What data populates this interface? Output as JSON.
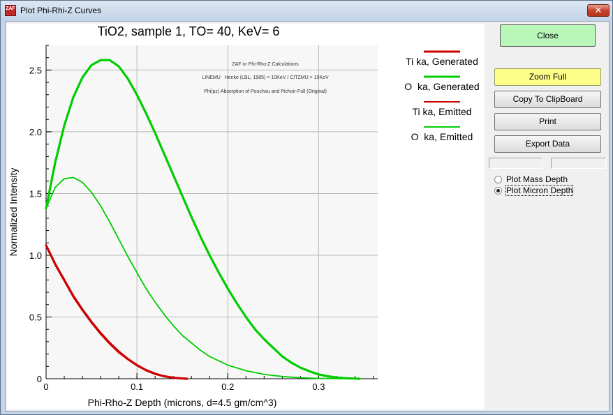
{
  "window": {
    "title": "Plot Phi-Rhi-Z Curves",
    "app_icon_text": "ZAF",
    "close_glyph": "✕"
  },
  "chart_data": {
    "type": "line",
    "title": "TiO2, sample 1, TO= 40, KeV= 6",
    "xlabel": "Phi-Rho-Z Depth (microns, d=4.5 gm/cm^3)",
    "ylabel": "Normalized Intensity",
    "xlim": [
      0,
      0.365
    ],
    "ylim": [
      0,
      2.7
    ],
    "x_ticks": [
      "0",
      "0.1",
      "0.2",
      "0.3"
    ],
    "x_tick_values": [
      0,
      0.1,
      0.2,
      0.3
    ],
    "y_ticks": [
      "0",
      "0.5",
      "1.0",
      "1.5",
      "2.0",
      "2.5"
    ],
    "y_tick_values": [
      0,
      0.5,
      1.0,
      1.5,
      2.0,
      2.5
    ],
    "grid": true,
    "annotations": [
      "ZAF or Phi-Rho-Z Calculations",
      "LINEMU   Henke (LBL, 1985) < 10KeV / CITZMU > 10KeV",
      "Phi(pz) Absorption of Pouchou and Pichoir-Full (Original)"
    ],
    "legend_placement": "right",
    "series": [
      {
        "name": "Ti ka, Generated",
        "color": "#cc0000",
        "weight": "thick",
        "x": [
          0,
          0.01,
          0.02,
          0.03,
          0.04,
          0.05,
          0.06,
          0.07,
          0.08,
          0.09,
          0.1,
          0.11,
          0.12,
          0.13,
          0.14,
          0.15,
          0.155
        ],
        "y": [
          1.08,
          0.93,
          0.8,
          0.67,
          0.56,
          0.46,
          0.37,
          0.29,
          0.22,
          0.16,
          0.11,
          0.07,
          0.04,
          0.02,
          0.008,
          0.002,
          0
        ]
      },
      {
        "name": "O  ka, Generated",
        "color": "#00cc00",
        "weight": "thick",
        "x": [
          0,
          0.01,
          0.02,
          0.03,
          0.04,
          0.05,
          0.06,
          0.07,
          0.08,
          0.09,
          0.1,
          0.11,
          0.12,
          0.13,
          0.14,
          0.15,
          0.16,
          0.17,
          0.18,
          0.19,
          0.2,
          0.21,
          0.22,
          0.23,
          0.24,
          0.25,
          0.26,
          0.27,
          0.28,
          0.29,
          0.3,
          0.31,
          0.32,
          0.33,
          0.34,
          0.345
        ],
        "y": [
          1.38,
          1.75,
          2.05,
          2.28,
          2.44,
          2.54,
          2.58,
          2.58,
          2.53,
          2.43,
          2.3,
          2.15,
          1.99,
          1.82,
          1.65,
          1.48,
          1.31,
          1.15,
          1.0,
          0.86,
          0.73,
          0.61,
          0.5,
          0.4,
          0.32,
          0.25,
          0.18,
          0.13,
          0.09,
          0.06,
          0.035,
          0.02,
          0.01,
          0.004,
          0.001,
          0
        ]
      },
      {
        "name": "Ti ka, Emitted",
        "color": "#cc0000",
        "weight": "thin",
        "x": [
          0,
          0.01,
          0.02,
          0.03,
          0.04,
          0.05,
          0.06,
          0.07,
          0.08,
          0.09,
          0.1,
          0.11,
          0.12,
          0.13,
          0.14,
          0.15,
          0.155
        ],
        "y": [
          1.08,
          0.92,
          0.79,
          0.66,
          0.55,
          0.45,
          0.36,
          0.28,
          0.21,
          0.155,
          0.105,
          0.065,
          0.035,
          0.018,
          0.007,
          0.002,
          0
        ]
      },
      {
        "name": "O  ka, Emitted",
        "color": "#00cc00",
        "weight": "thin",
        "x": [
          0,
          0.01,
          0.02,
          0.03,
          0.04,
          0.05,
          0.06,
          0.07,
          0.08,
          0.09,
          0.1,
          0.11,
          0.12,
          0.13,
          0.14,
          0.15,
          0.16,
          0.17,
          0.18,
          0.19,
          0.2,
          0.22,
          0.24,
          0.26,
          0.28,
          0.3,
          0.32,
          0.34
        ],
        "y": [
          1.38,
          1.55,
          1.62,
          1.63,
          1.59,
          1.51,
          1.4,
          1.27,
          1.13,
          0.99,
          0.86,
          0.73,
          0.62,
          0.52,
          0.43,
          0.35,
          0.29,
          0.23,
          0.18,
          0.145,
          0.11,
          0.065,
          0.035,
          0.018,
          0.008,
          0.003,
          0.001,
          0
        ]
      }
    ]
  },
  "buttons": {
    "close": "Close",
    "zoom_full": "Zoom Full",
    "copy": "Copy To ClipBoard",
    "print": "Print",
    "export": "Export Data"
  },
  "options": {
    "mass_depth": "Plot Mass Depth",
    "micron_depth": "Plot Micron Depth",
    "selected": "micron_depth"
  }
}
